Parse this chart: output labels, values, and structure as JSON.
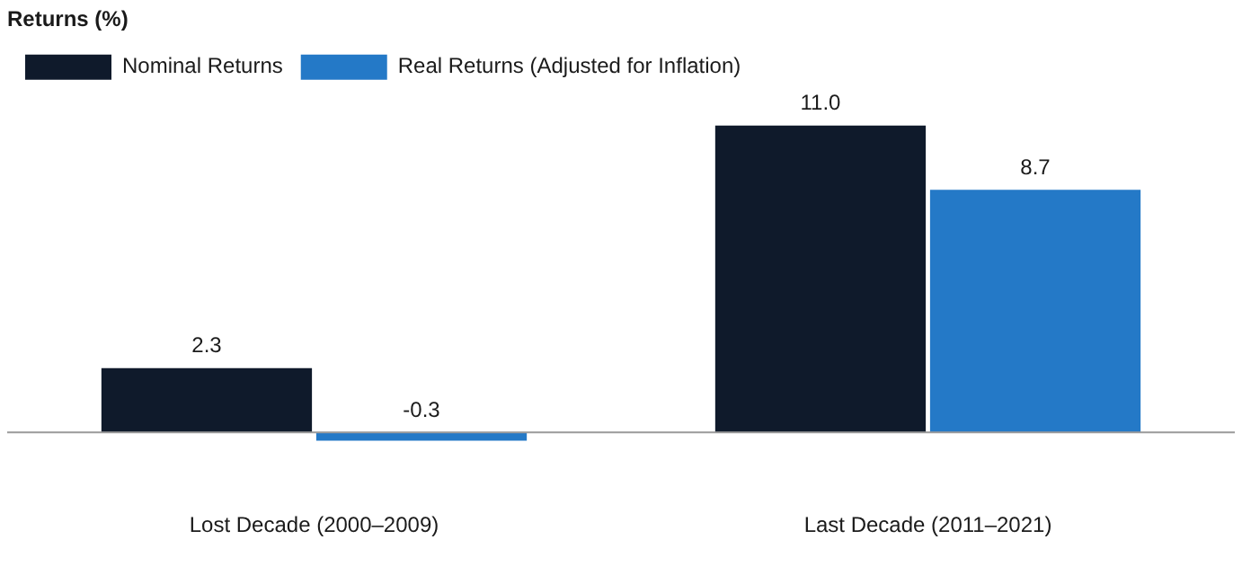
{
  "chart_data": {
    "type": "bar",
    "title": "Returns (%)",
    "categories": [
      "Lost Decade (2000–2009)",
      "Last Decade (2011–2021)"
    ],
    "series": [
      {
        "name": "Nominal Returns",
        "color": "#0f1a2b",
        "values": [
          2.3,
          11.0
        ],
        "value_labels": [
          "2.3",
          "11.0"
        ]
      },
      {
        "name": "Real Returns (Adjusted for Inflation)",
        "color": "#2479c7",
        "values": [
          -0.3,
          8.7
        ],
        "value_labels": [
          "-0.3",
          "8.7"
        ]
      }
    ],
    "legend": "top left",
    "grid": false
  }
}
